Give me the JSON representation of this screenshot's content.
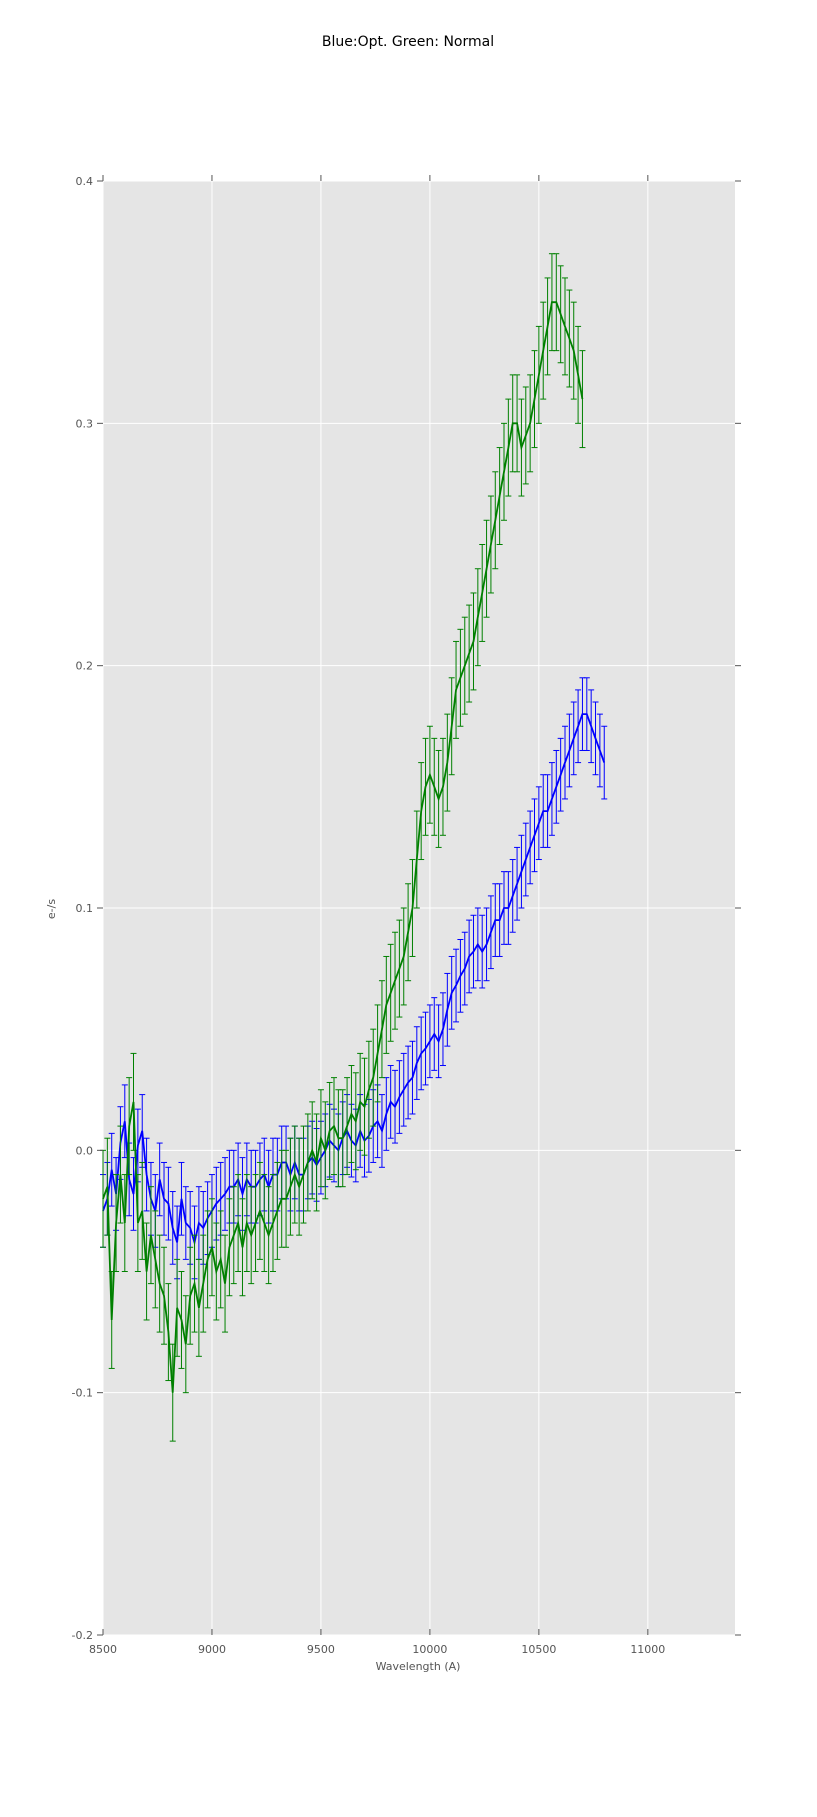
{
  "chart_data": {
    "type": "line",
    "title": "Blue:Opt. Green: Normal",
    "xlabel": "Wavelength (A)",
    "ylabel": "e-/s",
    "xlim": [
      8500,
      11400
    ],
    "ylim": [
      -0.2,
      0.4
    ],
    "xticks": [
      "8500",
      "9000",
      "9500",
      "10000",
      "10500",
      "11000"
    ],
    "yticks": [
      "0.4",
      "0.3",
      "0.2",
      "0.1",
      "0.0",
      "-0.1",
      "-0.2"
    ],
    "grid": true,
    "error_bars": true,
    "x_start": 8500,
    "x_step": 20,
    "series": [
      {
        "color": "#0000ff",
        "values": [
          -0.025,
          -0.02,
          -0.008,
          -0.018,
          0.003,
          0.012,
          -0.012,
          -0.018,
          0.002,
          0.008,
          -0.01,
          -0.02,
          -0.025,
          -0.012,
          -0.02,
          -0.022,
          -0.032,
          -0.038,
          -0.02,
          -0.03,
          -0.032,
          -0.038,
          -0.03,
          -0.032,
          -0.028,
          -0.025,
          -0.022,
          -0.02,
          -0.018,
          -0.015,
          -0.015,
          -0.012,
          -0.018,
          -0.012,
          -0.015,
          -0.015,
          -0.012,
          -0.01,
          -0.015,
          -0.01,
          -0.01,
          -0.005,
          -0.005,
          -0.01,
          -0.005,
          -0.01,
          -0.01,
          -0.005,
          -0.003,
          -0.006,
          -0.003,
          0.0,
          0.004,
          0.002,
          0.0,
          0.005,
          0.008,
          0.004,
          0.002,
          0.008,
          0.004,
          0.006,
          0.01,
          0.012,
          0.008,
          0.015,
          0.02,
          0.018,
          0.022,
          0.025,
          0.028,
          0.03,
          0.036,
          0.04,
          0.042,
          0.045,
          0.048,
          0.045,
          0.05,
          0.058,
          0.065,
          0.068,
          0.072,
          0.075,
          0.08,
          0.082,
          0.085,
          0.082,
          0.085,
          0.09,
          0.095,
          0.095,
          0.1,
          0.1,
          0.105,
          0.11,
          0.115,
          0.12,
          0.125,
          0.13,
          0.135,
          0.14,
          0.14,
          0.145,
          0.15,
          0.155,
          0.16,
          0.165,
          0.17,
          0.175,
          0.18,
          0.18,
          0.175,
          0.17,
          0.165,
          0.16
        ]
      },
      {
        "color": "#008000",
        "values": [
          -0.02,
          -0.015,
          -0.07,
          -0.03,
          -0.01,
          -0.03,
          0.01,
          0.02,
          -0.03,
          -0.025,
          -0.05,
          -0.035,
          -0.045,
          -0.055,
          -0.06,
          -0.075,
          -0.1,
          -0.065,
          -0.07,
          -0.08,
          -0.06,
          -0.055,
          -0.065,
          -0.055,
          -0.045,
          -0.04,
          -0.05,
          -0.045,
          -0.055,
          -0.04,
          -0.035,
          -0.03,
          -0.04,
          -0.03,
          -0.035,
          -0.03,
          -0.025,
          -0.03,
          -0.035,
          -0.03,
          -0.025,
          -0.02,
          -0.02,
          -0.015,
          -0.01,
          -0.015,
          -0.01,
          -0.005,
          0.0,
          -0.005,
          0.005,
          0.0,
          0.008,
          0.01,
          0.005,
          0.005,
          0.01,
          0.015,
          0.012,
          0.02,
          0.018,
          0.025,
          0.03,
          0.04,
          0.05,
          0.06,
          0.065,
          0.07,
          0.075,
          0.08,
          0.09,
          0.1,
          0.12,
          0.14,
          0.15,
          0.155,
          0.15,
          0.145,
          0.15,
          0.16,
          0.175,
          0.19,
          0.195,
          0.2,
          0.205,
          0.21,
          0.22,
          0.23,
          0.24,
          0.25,
          0.26,
          0.27,
          0.28,
          0.29,
          0.3,
          0.3,
          0.29,
          0.295,
          0.3,
          0.31,
          0.32,
          0.33,
          0.34,
          0.35,
          0.35,
          0.345,
          0.34,
          0.335,
          0.33,
          0.32,
          0.31
        ]
      }
    ]
  }
}
